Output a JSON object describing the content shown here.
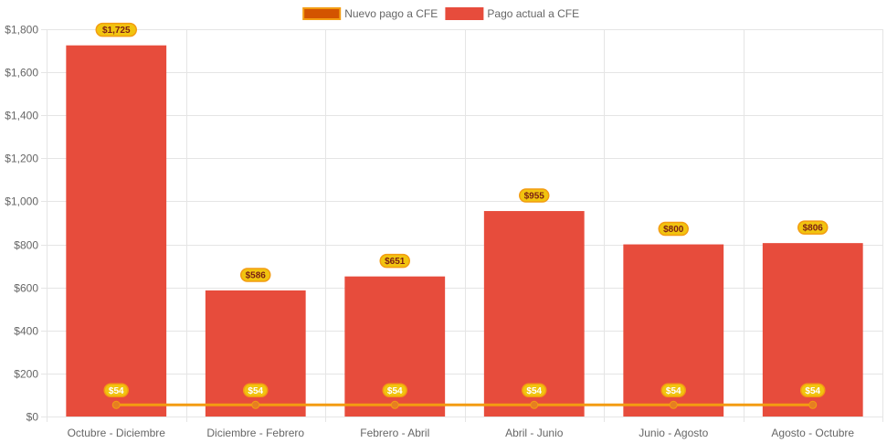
{
  "chart_data": {
    "type": "bar",
    "categories": [
      "Octubre - Diciembre",
      "Diciembre - Febrero",
      "Febrero - Abril",
      "Abril - Junio",
      "Junio - Agosto",
      "Agosto - Octubre"
    ],
    "series": [
      {
        "name": "Nuevo pago a CFE",
        "type": "line",
        "values": [
          54,
          54,
          54,
          54,
          54,
          54
        ],
        "labels": [
          "$54",
          "$54",
          "$54",
          "$54",
          "$54",
          "$54"
        ],
        "color": "#f39c12",
        "point_color": "#e67e22",
        "legend_fill": "#d35400"
      },
      {
        "name": "Pago actual a CFE",
        "type": "bar",
        "values": [
          1725,
          586,
          651,
          955,
          800,
          806
        ],
        "labels": [
          "$1,725",
          "$586",
          "$651",
          "$955",
          "$800",
          "$806"
        ],
        "color": "#e74c3c"
      }
    ],
    "ylim": [
      0,
      1800
    ],
    "yticks": [
      0,
      200,
      400,
      600,
      800,
      1000,
      1200,
      1400,
      1600,
      1800
    ],
    "ytick_labels": [
      "$0",
      "$200",
      "$400",
      "$600",
      "$800",
      "$1,000",
      "$1,200",
      "$1,400",
      "$1,600",
      "$1,800"
    ],
    "legend_position": "top-center",
    "grid": true,
    "label_badge_fill": "#f1c40f",
    "label_badge_border": "#f39c12",
    "grid_color": "#e5e5e5"
  }
}
